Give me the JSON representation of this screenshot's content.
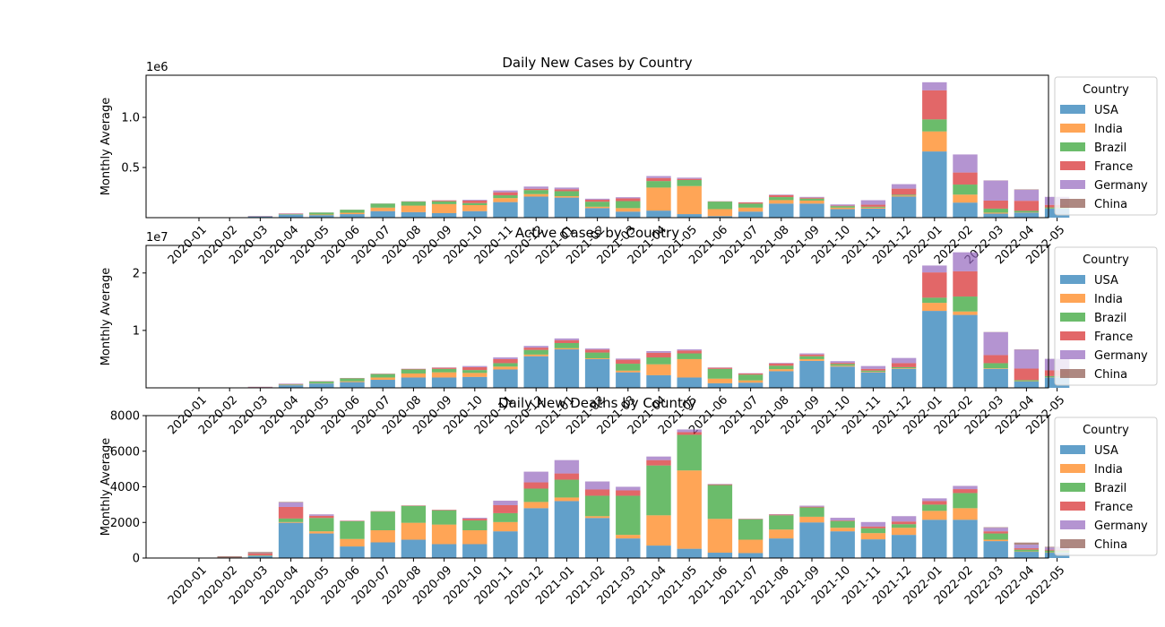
{
  "chart_data": [
    {
      "type": "bar",
      "stacked": true,
      "title": "Daily New Cases by Country",
      "xlabel": "",
      "ylabel": "Monthly Average",
      "offset_text": "1e6",
      "scale": 1000000,
      "ylim": [
        0,
        1420000
      ],
      "yticks": [
        500000,
        1000000
      ],
      "ytick_labels": [
        "0.5",
        "1.0"
      ],
      "legend_title": "Country",
      "legend_location": "outside right",
      "categories": [
        "2020-01",
        "2020-02",
        "2020-03",
        "2020-04",
        "2020-05",
        "2020-06",
        "2020-07",
        "2020-08",
        "2020-09",
        "2020-10",
        "2020-11",
        "2020-12",
        "2021-01",
        "2021-02",
        "2021-03",
        "2021-04",
        "2021-05",
        "2021-06",
        "2021-07",
        "2021-08",
        "2021-09",
        "2021-10",
        "2021-11",
        "2021-12",
        "2022-01",
        "2022-02",
        "2022-03",
        "2022-04",
        "2022-05"
      ],
      "series": [
        {
          "name": "USA",
          "color": "#1f77b4",
          "values": [
            0,
            100,
            12000,
            30000,
            25000,
            35000,
            65000,
            55000,
            45000,
            65000,
            155000,
            210000,
            200000,
            95000,
            60000,
            70000,
            35000,
            15000,
            60000,
            140000,
            140000,
            85000,
            90000,
            210000,
            660000,
            150000,
            40000,
            50000,
            90000
          ]
        },
        {
          "name": "India",
          "color": "#ff7f0e",
          "values": [
            0,
            0,
            200,
            2000,
            6000,
            14000,
            35000,
            65000,
            90000,
            60000,
            40000,
            25000,
            14000,
            14000,
            35000,
            230000,
            280000,
            70000,
            40000,
            35000,
            30000,
            15000,
            10000,
            10000,
            200000,
            80000,
            10000,
            3000,
            2000
          ]
        },
        {
          "name": "Brazil",
          "color": "#2ca02c",
          "values": [
            0,
            0,
            200,
            4000,
            20000,
            30000,
            40000,
            40000,
            28000,
            20000,
            28000,
            40000,
            50000,
            50000,
            70000,
            65000,
            60000,
            75000,
            40000,
            30000,
            20000,
            15000,
            9000,
            9000,
            120000,
            100000,
            40000,
            15000,
            10000
          ]
        },
        {
          "name": "France",
          "color": "#d62728",
          "values": [
            0,
            0,
            2500,
            3500,
            500,
            500,
            700,
            2500,
            9000,
            25000,
            30000,
            13000,
            18000,
            20000,
            27000,
            30000,
            12000,
            2500,
            12000,
            20000,
            9000,
            5000,
            20000,
            60000,
            290000,
            120000,
            80000,
            100000,
            25000
          ]
        },
        {
          "name": "Germany",
          "color": "#9467bd",
          "values": [
            0,
            0,
            2500,
            3500,
            700,
            400,
            500,
            1200,
            1800,
            8000,
            18000,
            22000,
            18000,
            10000,
            12000,
            20000,
            12000,
            1000,
            1000,
            5000,
            8000,
            12000,
            45000,
            45000,
            80000,
            180000,
            200000,
            110000,
            80000
          ]
        },
        {
          "name": "China",
          "color": "#8c564b",
          "values": [
            900,
            3000,
            100,
            40,
            10,
            20,
            60,
            80,
            20,
            20,
            20,
            30,
            100,
            20,
            10,
            20,
            10,
            20,
            40,
            60,
            40,
            40,
            40,
            100,
            100,
            200,
            1500,
            4000,
            300
          ]
        }
      ]
    },
    {
      "type": "bar",
      "stacked": true,
      "title": "Active Cases by Country",
      "xlabel": "",
      "ylabel": "Monthly Average",
      "offset_text": "1e7",
      "scale": 10000000,
      "ylim": [
        0,
        24800000
      ],
      "yticks": [
        10000000,
        20000000
      ],
      "ytick_labels": [
        "1",
        "2"
      ],
      "legend_title": "Country",
      "legend_location": "outside right",
      "categories": [
        "2020-01",
        "2020-02",
        "2020-03",
        "2020-04",
        "2020-05",
        "2020-06",
        "2020-07",
        "2020-08",
        "2020-09",
        "2020-10",
        "2020-11",
        "2020-12",
        "2021-01",
        "2021-02",
        "2021-03",
        "2021-04",
        "2021-05",
        "2021-06",
        "2021-07",
        "2021-08",
        "2021-09",
        "2021-10",
        "2021-11",
        "2021-12",
        "2022-01",
        "2022-02",
        "2022-03",
        "2022-04",
        "2022-05"
      ],
      "series": [
        {
          "name": "USA",
          "color": "#1f77b4",
          "values": [
            0,
            20000,
            50000,
            450000,
            750000,
            1000000,
            1400000,
            1800000,
            1800000,
            1900000,
            3200000,
            5500000,
            6700000,
            5000000,
            2700000,
            2200000,
            1800000,
            800000,
            900000,
            2900000,
            4700000,
            3700000,
            2700000,
            3300000,
            13400000,
            12700000,
            3300000,
            1100000,
            1800000
          ]
        },
        {
          "name": "India",
          "color": "#ff7f0e",
          "values": [
            0,
            0,
            10000,
            30000,
            50000,
            150000,
            400000,
            700000,
            900000,
            700000,
            500000,
            300000,
            200000,
            150000,
            300000,
            1900000,
            3200000,
            800000,
            400000,
            350000,
            300000,
            150000,
            100000,
            100000,
            1400000,
            600000,
            100000,
            50000,
            50000
          ]
        },
        {
          "name": "Brazil",
          "color": "#2ca02c",
          "values": [
            0,
            0,
            10000,
            100000,
            300000,
            500000,
            600000,
            700000,
            600000,
            500000,
            600000,
            800000,
            900000,
            1000000,
            1200000,
            1200000,
            1000000,
            1700000,
            1000000,
            600000,
            500000,
            300000,
            200000,
            200000,
            900000,
            2600000,
            900000,
            200000,
            200000
          ]
        },
        {
          "name": "France",
          "color": "#d62728",
          "values": [
            0,
            0,
            50000,
            80000,
            50000,
            50000,
            60000,
            100000,
            200000,
            500000,
            700000,
            400000,
            500000,
            500000,
            700000,
            800000,
            500000,
            200000,
            200000,
            400000,
            300000,
            200000,
            300000,
            700000,
            4400000,
            4400000,
            1400000,
            2000000,
            1000000
          ]
        },
        {
          "name": "Germany",
          "color": "#9467bd",
          "values": [
            0,
            0,
            50000,
            80000,
            30000,
            20000,
            20000,
            30000,
            50000,
            200000,
            300000,
            300000,
            300000,
            200000,
            200000,
            300000,
            200000,
            50000,
            50000,
            100000,
            200000,
            300000,
            500000,
            900000,
            1200000,
            3300000,
            4000000,
            3300000,
            2000000
          ]
        },
        {
          "name": "China",
          "color": "#8c564b",
          "values": [
            10000,
            50000,
            20000,
            2000,
            500,
            500,
            500,
            500,
            500,
            500,
            500,
            500,
            1000,
            500,
            500,
            500,
            500,
            500,
            500,
            500,
            500,
            500,
            500,
            1000,
            2000,
            5000,
            30000,
            50000,
            5000
          ]
        }
      ]
    },
    {
      "type": "bar",
      "stacked": true,
      "title": "Daily New Deaths by Country",
      "xlabel": "",
      "ylabel": "Monthly Average",
      "ylim": [
        0,
        8000
      ],
      "yticks": [
        0,
        2000,
        4000,
        6000,
        8000
      ],
      "ytick_labels": [
        "0",
        "2000",
        "4000",
        "6000",
        "8000"
      ],
      "legend_title": "Country",
      "legend_location": "outside right",
      "categories": [
        "2020-01",
        "2020-02",
        "2020-03",
        "2020-04",
        "2020-05",
        "2020-06",
        "2020-07",
        "2020-08",
        "2020-09",
        "2020-10",
        "2020-11",
        "2020-12",
        "2021-01",
        "2021-02",
        "2021-03",
        "2021-04",
        "2021-05",
        "2021-06",
        "2021-07",
        "2021-08",
        "2021-09",
        "2021-10",
        "2021-11",
        "2021-12",
        "2022-01",
        "2022-02",
        "2022-03",
        "2022-04",
        "2022-05"
      ],
      "series": [
        {
          "name": "USA",
          "color": "#1f77b4",
          "values": [
            0,
            0,
            120,
            1980,
            1380,
            650,
            880,
            1030,
            780,
            780,
            1500,
            2800,
            3200,
            2250,
            1100,
            700,
            520,
            300,
            280,
            1100,
            2000,
            1500,
            1050,
            1300,
            2150,
            2150,
            950,
            350,
            300
          ]
        },
        {
          "name": "India",
          "color": "#ff7f0e",
          "values": [
            0,
            0,
            10,
            40,
            120,
            420,
            680,
            950,
            1100,
            780,
            520,
            350,
            200,
            100,
            200,
            1700,
            4400,
            1900,
            750,
            500,
            320,
            200,
            350,
            400,
            500,
            650,
            80,
            20,
            20
          ]
        },
        {
          "name": "Brazil",
          "color": "#2ca02c",
          "values": [
            0,
            0,
            20,
            200,
            750,
            1000,
            1050,
            950,
            800,
            550,
            500,
            750,
            1000,
            1150,
            2200,
            2800,
            2000,
            1900,
            1150,
            800,
            520,
            380,
            270,
            200,
            350,
            850,
            350,
            100,
            100
          ]
        },
        {
          "name": "France",
          "color": "#d62728",
          "values": [
            0,
            0,
            100,
            650,
            120,
            20,
            20,
            20,
            30,
            100,
            450,
            350,
            350,
            350,
            300,
            300,
            150,
            40,
            20,
            40,
            40,
            30,
            100,
            150,
            200,
            220,
            120,
            80,
            50
          ]
        },
        {
          "name": "Germany",
          "color": "#9467bd",
          "values": [
            0,
            0,
            10,
            250,
            80,
            10,
            5,
            5,
            5,
            50,
            250,
            600,
            750,
            450,
            200,
            200,
            150,
            20,
            10,
            20,
            60,
            150,
            250,
            300,
            150,
            180,
            200,
            200,
            120
          ]
        },
        {
          "name": "China",
          "color": "#8c564b",
          "values": [
            25,
            100,
            80,
            30,
            5,
            2,
            2,
            2,
            2,
            2,
            2,
            2,
            2,
            2,
            2,
            2,
            2,
            2,
            2,
            2,
            2,
            2,
            2,
            2,
            2,
            2,
            30,
            120,
            40
          ]
        }
      ]
    }
  ]
}
